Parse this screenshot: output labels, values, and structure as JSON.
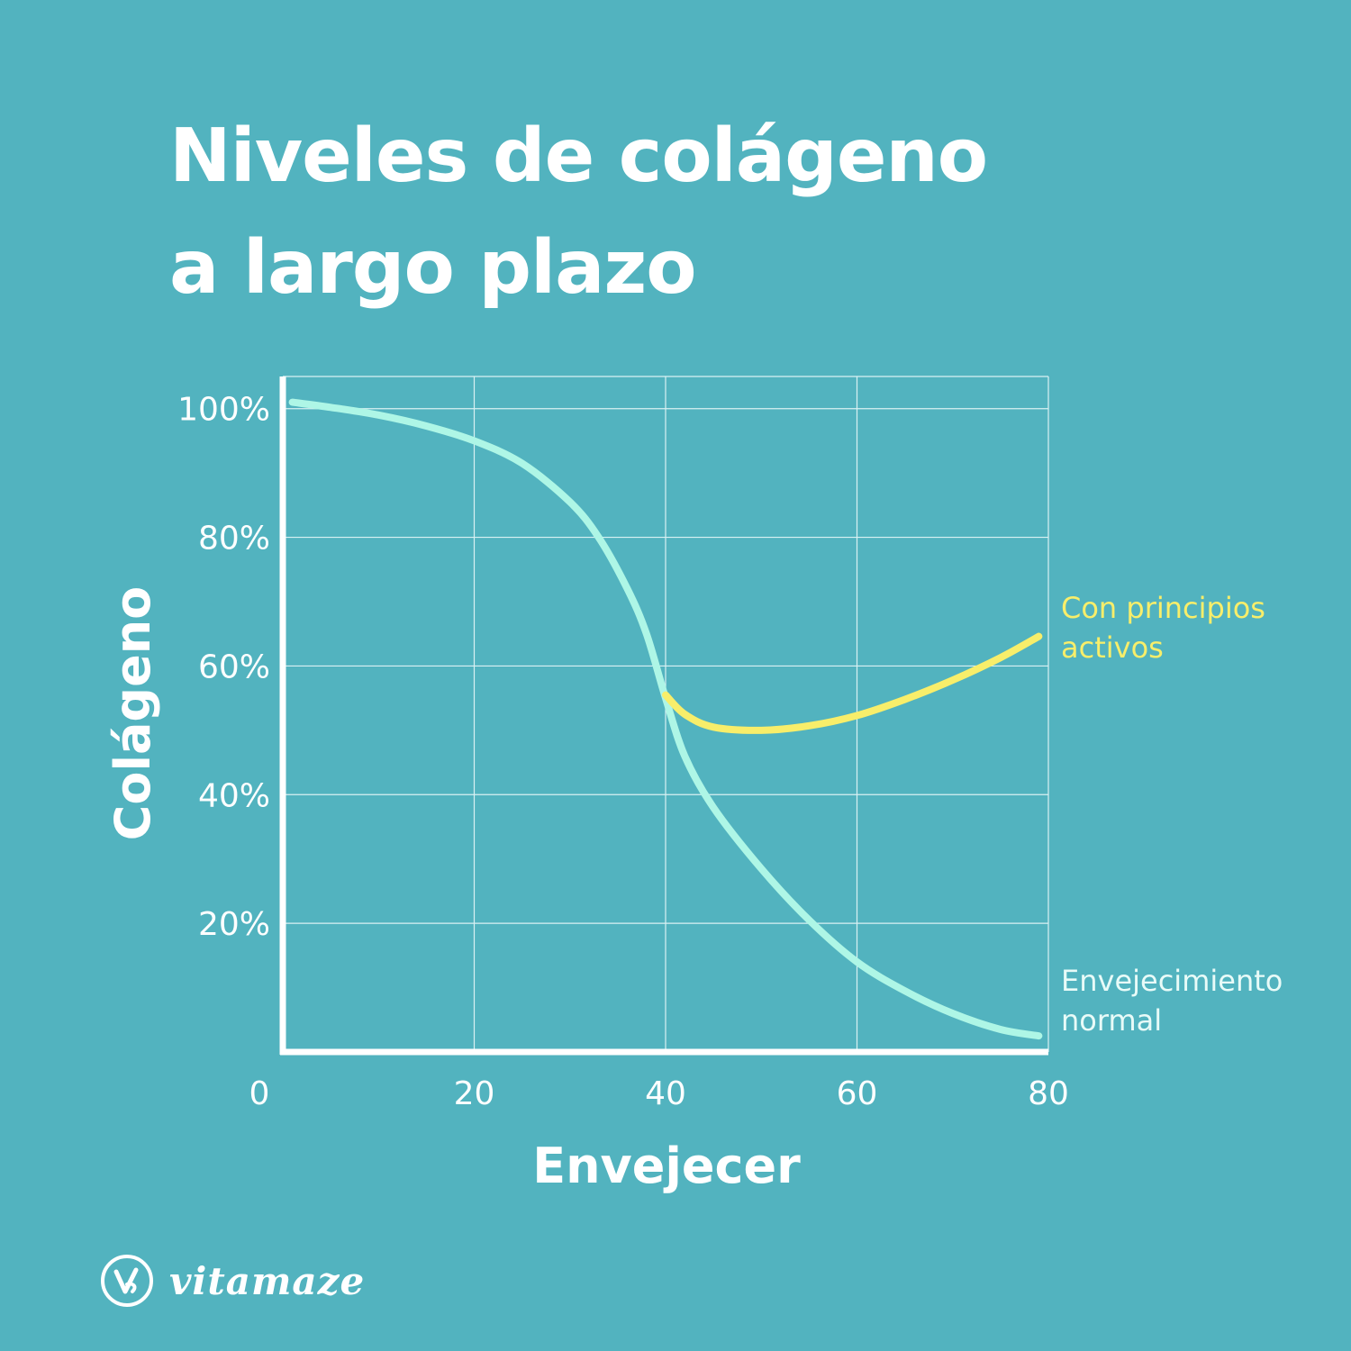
{
  "title_line1": "Niveles de colágeno",
  "title_line2": "a largo plazo",
  "brand": {
    "name": "vitamaze",
    "icon": "vitamaze-logo-icon"
  },
  "colors": {
    "background": "#52b3bf",
    "normal": "#aef6e6",
    "active": "#f8ee6a",
    "axis": "#ffffff",
    "grid": "#d9f1f3"
  },
  "chart_data": {
    "type": "line",
    "title": "Niveles de colágeno a largo plazo",
    "xlabel": "Envejecer",
    "ylabel": "Colágeno",
    "xlim": [
      0,
      80
    ],
    "ylim": [
      0,
      105
    ],
    "x_ticks": [
      0,
      20,
      40,
      60,
      80
    ],
    "x_tick_labels": [
      "0",
      "20",
      "40",
      "60",
      "80"
    ],
    "y_ticks": [
      20,
      40,
      60,
      80,
      100
    ],
    "y_tick_labels": [
      "20%",
      "40%",
      "60%",
      "80%",
      "100%"
    ],
    "grid": true,
    "series": [
      {
        "name": "Envejecimiento normal",
        "label_lines": [
          "Envejecimiento",
          "normal"
        ],
        "x": [
          1,
          5,
          10,
          15,
          20,
          25,
          30,
          33,
          36,
          38,
          40,
          42,
          45,
          50,
          55,
          60,
          65,
          70,
          75,
          79
        ],
        "y": [
          101,
          100.2,
          99,
          97.3,
          95,
          91.5,
          85.5,
          80,
          72,
          65,
          55,
          46,
          38,
          28.5,
          20.5,
          14,
          9.5,
          6,
          3.5,
          2.5
        ]
      },
      {
        "name": "Con principios activos",
        "label_lines": [
          "Con principios",
          "activos"
        ],
        "x": [
          40,
          42,
          45,
          50,
          55,
          60,
          65,
          70,
          75,
          79
        ],
        "y": [
          55.5,
          52.5,
          50.5,
          50,
          50.7,
          52.3,
          54.8,
          57.8,
          61.3,
          64.6
        ]
      }
    ],
    "legend": "direct-labels-right"
  }
}
